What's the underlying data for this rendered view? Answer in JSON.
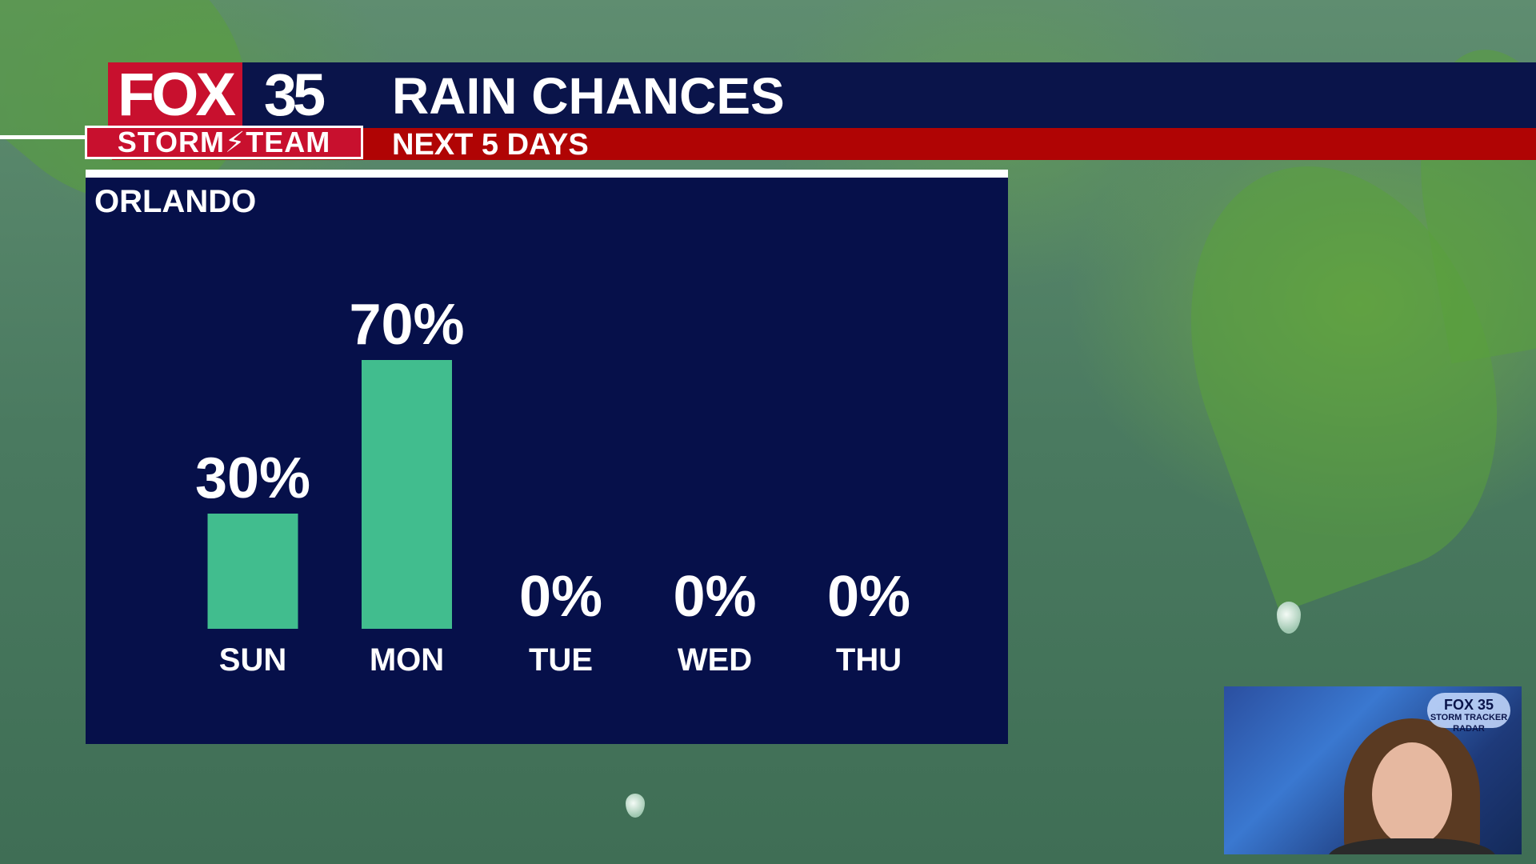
{
  "branding": {
    "station_fox": "FOX",
    "station_number": "35",
    "team": "STORM⚡TEAM"
  },
  "header": {
    "title": "RAIN CHANCES",
    "subtitle": "NEXT 5 DAYS"
  },
  "location": "ORLANDO",
  "inset": {
    "logo_fox": "FOX 35",
    "logo_line": "STORM TRACKER RADAR"
  },
  "colors": {
    "bar": "#41bd8e",
    "panel": "#06104a",
    "header_blue": "#0a144a",
    "header_red": "#b00404",
    "logo_red": "#c8102e"
  },
  "chart_data": {
    "type": "bar",
    "title": "RAIN CHANCES",
    "subtitle": "NEXT 5 DAYS",
    "categories": [
      "SUN",
      "MON",
      "TUE",
      "WED",
      "THU"
    ],
    "values": [
      30,
      70,
      0,
      0,
      0
    ],
    "value_labels": [
      "30%",
      "70%",
      "0%",
      "0%",
      "0%"
    ],
    "ylim": [
      0,
      100
    ],
    "grid": false,
    "legend": "none"
  }
}
